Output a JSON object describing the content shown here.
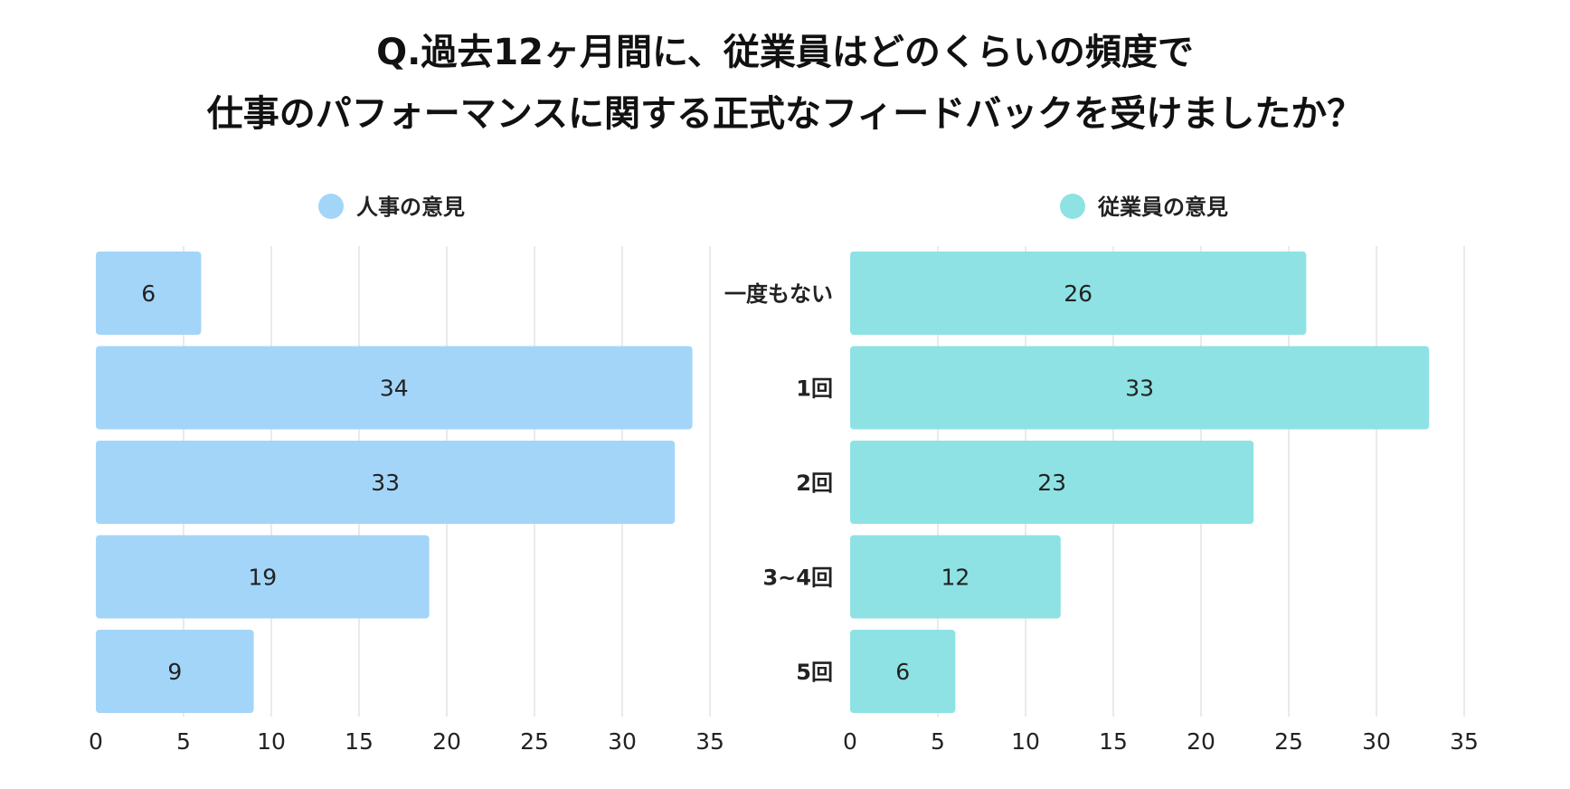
{
  "title_lines": [
    "Q.過去12ヶ月間に、従業員はどのくらいの頻度で",
    "仕事のパフォーマンスに関する正式なフィードバックを受けましたか？"
  ],
  "chart_data": [
    {
      "type": "bar",
      "orientation": "horizontal",
      "categories": [
        "一度もない",
        "1回",
        "2回",
        "3~4回",
        "5回"
      ],
      "series": [
        {
          "name": "人事の意見",
          "values": [
            6,
            34,
            33,
            19,
            9
          ],
          "color": "#a3d5f8"
        }
      ],
      "xlim": [
        0,
        35
      ],
      "xticks": [
        0,
        5,
        10,
        15,
        20,
        25,
        30,
        35
      ],
      "grid": true,
      "legend_placement": "top"
    },
    {
      "type": "bar",
      "orientation": "horizontal",
      "categories": [
        "一度もない",
        "1回",
        "2回",
        "3~4回",
        "5回"
      ],
      "series": [
        {
          "name": "従業員の意見",
          "values": [
            26,
            33,
            23,
            12,
            6
          ],
          "color": "#8ee2e4"
        }
      ],
      "xlim": [
        0,
        35
      ],
      "xticks": [
        0,
        5,
        10,
        15,
        20,
        25,
        30,
        35
      ],
      "grid": true,
      "legend_placement": "top"
    }
  ]
}
